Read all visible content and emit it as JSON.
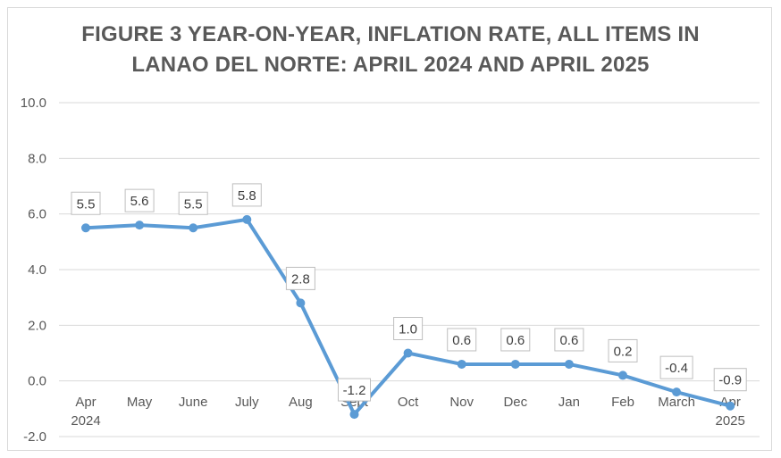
{
  "chart_data": {
    "type": "line",
    "title_lines": [
      "FIGURE 3 YEAR-ON-YEAR, INFLATION RATE, ALL ITEMS IN",
      "LANAO DEL NORTE: APRIL 2024 AND APRIL 2025"
    ],
    "categories": [
      [
        "Apr",
        "2024"
      ],
      [
        "May"
      ],
      [
        "June"
      ],
      [
        "July"
      ],
      [
        "Aug"
      ],
      [
        "Sept"
      ],
      [
        "Oct"
      ],
      [
        "Nov"
      ],
      [
        "Dec"
      ],
      [
        "Jan"
      ],
      [
        "Feb"
      ],
      [
        "March"
      ],
      [
        "Apr",
        "2025"
      ]
    ],
    "series": [
      {
        "values": [
          5.5,
          5.6,
          5.5,
          5.8,
          2.8,
          -1.2,
          1.0,
          0.6,
          0.6,
          0.6,
          0.2,
          -0.4,
          -0.9
        ]
      }
    ],
    "data_labels": [
      "5.5",
      "5.6",
      "5.5",
      "5.8",
      "2.8",
      "-1.2",
      "1.0",
      "0.6",
      "0.6",
      "0.6",
      "0.2",
      "-0.4",
      "-0.9"
    ],
    "y_ticks": [
      "10.0",
      "8.0",
      "6.0",
      "4.0",
      "2.0",
      "0.0",
      "-2.0"
    ],
    "ylim": [
      -2,
      10
    ],
    "grid": true,
    "legend": "none",
    "line_color": "#5b9bd5",
    "grid_color": "#d9d9d9"
  }
}
